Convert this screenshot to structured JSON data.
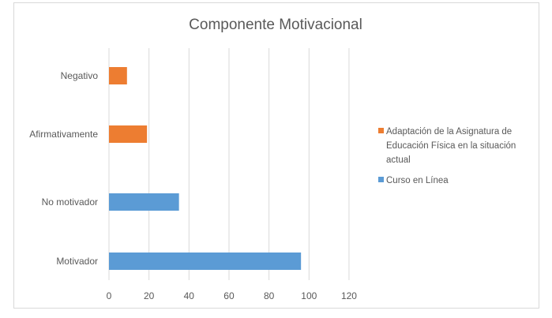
{
  "chart_data": {
    "type": "bar",
    "orientation": "horizontal",
    "title": "Componente Motivacional",
    "categories": [
      "Motivador",
      "No motivador",
      "Afirmativamente",
      "Negativo"
    ],
    "series": [
      {
        "name": "Curso en Línea",
        "color": "#5b9bd5",
        "values": [
          96,
          35,
          null,
          null
        ]
      },
      {
        "name": "Adaptación de la Asignatura de Educación Física en la situación actual",
        "color": "#ed7d31",
        "values": [
          null,
          null,
          19,
          9
        ]
      }
    ],
    "xlim": [
      0,
      120
    ],
    "xticks": [
      "0",
      "20",
      "40",
      "60",
      "80",
      "100",
      "120"
    ],
    "grid": "vertical",
    "legend": {
      "position": "right",
      "entries": [
        {
          "series": 1,
          "lines": [
            "Adaptación de la Asignatura de",
            "Educación Física en la situación",
            "actual"
          ]
        },
        {
          "series": 0,
          "lines": [
            "Curso en Línea"
          ]
        }
      ]
    }
  }
}
